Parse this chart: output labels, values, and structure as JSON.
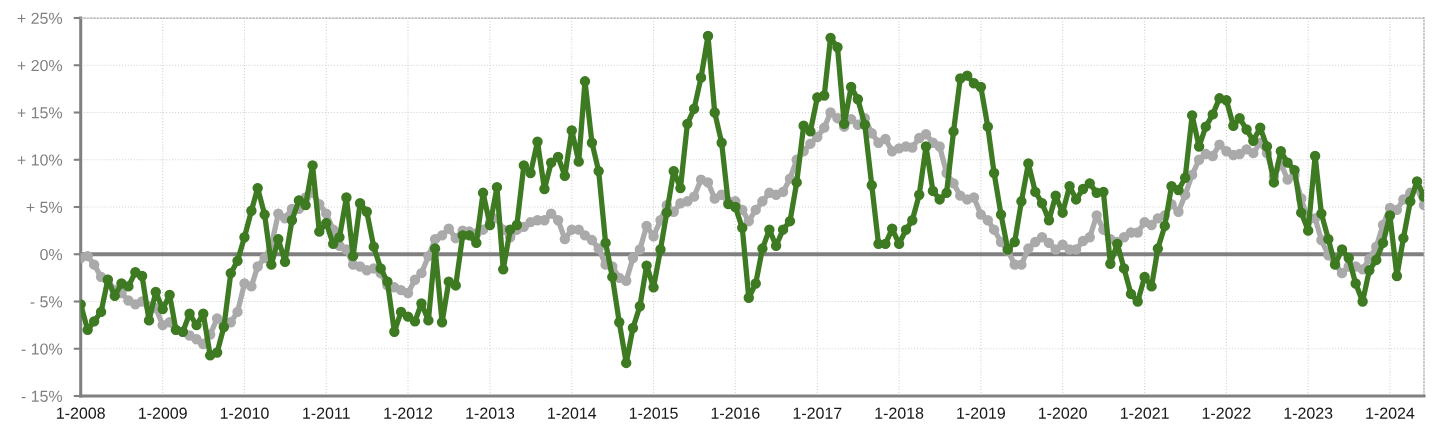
{
  "chart_data": {
    "type": "line",
    "x": [
      "2008-01",
      "2008-02",
      "2008-03",
      "2008-04",
      "2008-05",
      "2008-06",
      "2008-07",
      "2008-08",
      "2008-09",
      "2008-10",
      "2008-11",
      "2008-12",
      "2009-01",
      "2009-02",
      "2009-03",
      "2009-04",
      "2009-05",
      "2009-06",
      "2009-07",
      "2009-08",
      "2009-09",
      "2009-10",
      "2009-11",
      "2009-12",
      "2010-01",
      "2010-02",
      "2010-03",
      "2010-04",
      "2010-05",
      "2010-06",
      "2010-07",
      "2010-08",
      "2010-09",
      "2010-10",
      "2010-11",
      "2010-12",
      "2011-01",
      "2011-02",
      "2011-03",
      "2011-04",
      "2011-05",
      "2011-06",
      "2011-07",
      "2011-08",
      "2011-09",
      "2011-10",
      "2011-11",
      "2011-12",
      "2012-01",
      "2012-02",
      "2012-03",
      "2012-04",
      "2012-05",
      "2012-06",
      "2012-07",
      "2012-08",
      "2012-09",
      "2012-10",
      "2012-11",
      "2012-12",
      "2013-01",
      "2013-02",
      "2013-03",
      "2013-04",
      "2013-05",
      "2013-06",
      "2013-07",
      "2013-08",
      "2013-09",
      "2013-10",
      "2013-11",
      "2013-12",
      "2014-01",
      "2014-02",
      "2014-03",
      "2014-04",
      "2014-05",
      "2014-06",
      "2014-07",
      "2014-08",
      "2014-09",
      "2014-10",
      "2014-11",
      "2014-12",
      "2015-01",
      "2015-02",
      "2015-03",
      "2015-04",
      "2015-05",
      "2015-06",
      "2015-07",
      "2015-08",
      "2015-09",
      "2015-10",
      "2015-11",
      "2015-12",
      "2016-01",
      "2016-02",
      "2016-03",
      "2016-04",
      "2016-05",
      "2016-06",
      "2016-07",
      "2016-08",
      "2016-09",
      "2016-10",
      "2016-11",
      "2016-12",
      "2017-01",
      "2017-02",
      "2017-03",
      "2017-04",
      "2017-05",
      "2017-06",
      "2017-07",
      "2017-08",
      "2017-09",
      "2017-10",
      "2017-11",
      "2017-12",
      "2018-01",
      "2018-02",
      "2018-03",
      "2018-04",
      "2018-05",
      "2018-06",
      "2018-07",
      "2018-08",
      "2018-09",
      "2018-10",
      "2018-11",
      "2018-12",
      "2019-01",
      "2019-02",
      "2019-03",
      "2019-04",
      "2019-05",
      "2019-06",
      "2019-07",
      "2019-08",
      "2019-09",
      "2019-10",
      "2019-11",
      "2019-12",
      "2020-01",
      "2020-02",
      "2020-03",
      "2020-04",
      "2020-05",
      "2020-06",
      "2020-07",
      "2020-08",
      "2020-09",
      "2020-10",
      "2020-11",
      "2020-12",
      "2021-01",
      "2021-02",
      "2021-03",
      "2021-04",
      "2021-05",
      "2021-06",
      "2021-07",
      "2021-08",
      "2021-09",
      "2021-10",
      "2021-11",
      "2021-12",
      "2022-01",
      "2022-02",
      "2022-03",
      "2022-04",
      "2022-05",
      "2022-06",
      "2022-07",
      "2022-08",
      "2022-09",
      "2022-10",
      "2022-11",
      "2022-12",
      "2023-01",
      "2023-02",
      "2023-03",
      "2023-04",
      "2023-05",
      "2023-06",
      "2023-07",
      "2023-08",
      "2023-09",
      "2023-10",
      "2023-11",
      "2023-12",
      "2024-01",
      "2024-02",
      "2024-03",
      "2024-04",
      "2024-05",
      "2024-06"
    ],
    "xlim": [
      "2008-01",
      "2024-06"
    ],
    "xticks": [
      {
        "value": "2008-01",
        "label": "1-2008"
      },
      {
        "value": "2009-01",
        "label": "1-2009"
      },
      {
        "value": "2010-01",
        "label": "1-2010"
      },
      {
        "value": "2011-01",
        "label": "1-2011"
      },
      {
        "value": "2012-01",
        "label": "1-2012"
      },
      {
        "value": "2013-01",
        "label": "1-2013"
      },
      {
        "value": "2014-01",
        "label": "1-2014"
      },
      {
        "value": "2015-01",
        "label": "1-2015"
      },
      {
        "value": "2016-01",
        "label": "1-2016"
      },
      {
        "value": "2017-01",
        "label": "1-2017"
      },
      {
        "value": "2018-01",
        "label": "1-2018"
      },
      {
        "value": "2019-01",
        "label": "1-2019"
      },
      {
        "value": "2020-01",
        "label": "1-2020"
      },
      {
        "value": "2021-01",
        "label": "1-2021"
      },
      {
        "value": "2022-01",
        "label": "1-2022"
      },
      {
        "value": "2023-01",
        "label": "1-2023"
      },
      {
        "value": "2024-01",
        "label": "1-2024"
      }
    ],
    "ylim": [
      -15,
      25
    ],
    "yticks": [
      {
        "value": -15,
        "label": "- 15%"
      },
      {
        "value": -10,
        "label": "- 10%"
      },
      {
        "value": -5,
        "label": "- 5%"
      },
      {
        "value": 0,
        "label": "0%"
      },
      {
        "value": 5,
        "label": "+ 5%"
      },
      {
        "value": 10,
        "label": "+ 10%"
      },
      {
        "value": 15,
        "label": "+ 15%"
      },
      {
        "value": 20,
        "label": "+ 20%"
      },
      {
        "value": 25,
        "label": "+ 25%"
      }
    ],
    "grid": true,
    "marker": "circle",
    "line_style": "solid",
    "ref_lines": [
      {
        "axis": "y",
        "value": 0,
        "color": "#808080"
      }
    ],
    "series": [
      {
        "color": "#aaaaaa",
        "values": [
          -0.4,
          -0.2,
          -1.1,
          -2.4,
          -2.7,
          -3.8,
          -4.1,
          -4.9,
          -5.3,
          -5.0,
          -5.5,
          -5.7,
          -7.5,
          -7.2,
          -8.0,
          -8.2,
          -8.6,
          -9.0,
          -9.5,
          -8.5,
          -6.8,
          -7.5,
          -7.2,
          -6.1,
          -3.1,
          -3.4,
          -1.3,
          -0.4,
          0.9,
          4.3,
          3.8,
          4.8,
          4.8,
          6.0,
          6.5,
          5.3,
          4.3,
          2.6,
          0.9,
          0.5,
          -1.1,
          -1.3,
          -1.7,
          -1.5,
          -2.0,
          -3.3,
          -3.5,
          -3.8,
          -4.1,
          -2.7,
          -2.0,
          -0.2,
          1.6,
          2.0,
          2.7,
          1.7,
          2.5,
          2.4,
          2.2,
          2.6,
          3.4,
          3.8,
          2.6,
          1.8,
          2.6,
          2.9,
          3.4,
          3.6,
          3.6,
          4.3,
          3.6,
          1.6,
          2.6,
          2.6,
          2.0,
          1.5,
          0.6,
          -1.1,
          -1.3,
          -2.5,
          -2.8,
          -0.4,
          0.5,
          3.0,
          1.9,
          3.6,
          5.2,
          4.5,
          5.4,
          5.6,
          6.1,
          7.9,
          7.6,
          5.9,
          6.3,
          5.6,
          5.6,
          4.7,
          3.5,
          4.7,
          5.6,
          6.5,
          6.3,
          6.6,
          8.0,
          10.0,
          10.9,
          11.7,
          12.4,
          13.4,
          15.0,
          14.4,
          13.5,
          14.3,
          13.7,
          14.4,
          12.8,
          11.8,
          12.2,
          10.9,
          11.2,
          11.4,
          11.3,
          12.3,
          12.7,
          11.8,
          11.4,
          8.6,
          7.5,
          6.2,
          5.8,
          6.0,
          4.2,
          3.6,
          2.6,
          1.3,
          0.4,
          -1.1,
          -1.1,
          0.6,
          1.3,
          1.8,
          1.2,
          0.5,
          1.0,
          0.5,
          0.5,
          1.4,
          1.8,
          4.1,
          2.6,
          1.6,
          1.3,
          1.8,
          2.3,
          2.3,
          3.4,
          3.1,
          3.8,
          4.1,
          5.3,
          4.5,
          6.3,
          8.4,
          10.0,
          10.6,
          10.4,
          11.6,
          10.9,
          10.5,
          10.6,
          11.1,
          10.7,
          11.8,
          10.7,
          8.2,
          9.6,
          7.9,
          8.4,
          5.9,
          3.6,
          3.8,
          1.5,
          -0.1,
          -1.0,
          -2.0,
          -1.3,
          -1.3,
          -1.6,
          -0.5,
          0.8,
          3.1,
          4.9,
          4.7,
          5.8,
          6.5,
          7.0,
          5.2
        ]
      },
      {
        "color": "#3d7a22",
        "values": [
          -5.3,
          -8.0,
          -7.1,
          -6.1,
          -2.7,
          -4.4,
          -3.1,
          -3.4,
          -1.9,
          -2.3,
          -7.0,
          -4.0,
          -5.8,
          -4.3,
          -8.0,
          -8.2,
          -6.3,
          -7.5,
          -6.3,
          -10.7,
          -10.4,
          -7.7,
          -2.0,
          -0.7,
          1.8,
          4.6,
          7.0,
          4.2,
          -1.1,
          1.6,
          -0.8,
          3.6,
          5.7,
          5.2,
          9.4,
          2.4,
          3.3,
          1.1,
          1.8,
          6.0,
          -0.2,
          5.4,
          4.5,
          0.8,
          -1.5,
          -2.9,
          -8.2,
          -6.1,
          -6.6,
          -7.1,
          -5.2,
          -7.0,
          0.6,
          -7.2,
          -2.9,
          -3.3,
          2.0,
          2.0,
          1.2,
          6.5,
          3.1,
          7.1,
          -1.6,
          2.6,
          3.1,
          9.4,
          8.6,
          11.9,
          6.9,
          9.7,
          10.3,
          8.3,
          13.1,
          9.8,
          18.3,
          11.8,
          8.8,
          1.2,
          -2.4,
          -7.2,
          -11.5,
          -7.8,
          -5.5,
          -1.2,
          -3.5,
          0.5,
          4.4,
          8.8,
          7.0,
          13.8,
          15.4,
          18.7,
          23.1,
          15.0,
          11.8,
          5.3,
          5.0,
          2.8,
          -4.6,
          -3.1,
          0.6,
          2.6,
          0.9,
          2.6,
          3.5,
          7.6,
          13.6,
          13.0,
          16.6,
          16.8,
          22.9,
          21.9,
          13.8,
          17.7,
          16.4,
          13.7,
          7.3,
          1.1,
          1.1,
          2.7,
          1.1,
          2.6,
          3.6,
          6.3,
          11.4,
          6.7,
          5.8,
          6.5,
          13.0,
          18.6,
          18.9,
          18.1,
          17.7,
          13.5,
          8.6,
          4.2,
          0.5,
          1.3,
          5.6,
          9.6,
          6.6,
          5.4,
          3.6,
          6.2,
          4.4,
          7.2,
          5.8,
          6.9,
          7.5,
          6.5,
          6.6,
          -1.0,
          1.1,
          -1.5,
          -4.2,
          -5.0,
          -2.4,
          -3.4,
          0.6,
          3.0,
          7.2,
          6.8,
          8.1,
          14.7,
          11.4,
          13.5,
          14.8,
          16.5,
          16.3,
          13.6,
          14.4,
          13.2,
          12.0,
          13.4,
          11.4,
          7.6,
          10.9,
          9.7,
          8.9,
          4.4,
          2.5,
          10.4,
          4.3,
          1.6,
          -1.1,
          0.5,
          -0.4,
          -3.1,
          -5.0,
          -1.7,
          -0.6,
          1.2,
          4.1,
          -2.3,
          1.7,
          5.6,
          7.7,
          6.1
        ]
      }
    ]
  }
}
